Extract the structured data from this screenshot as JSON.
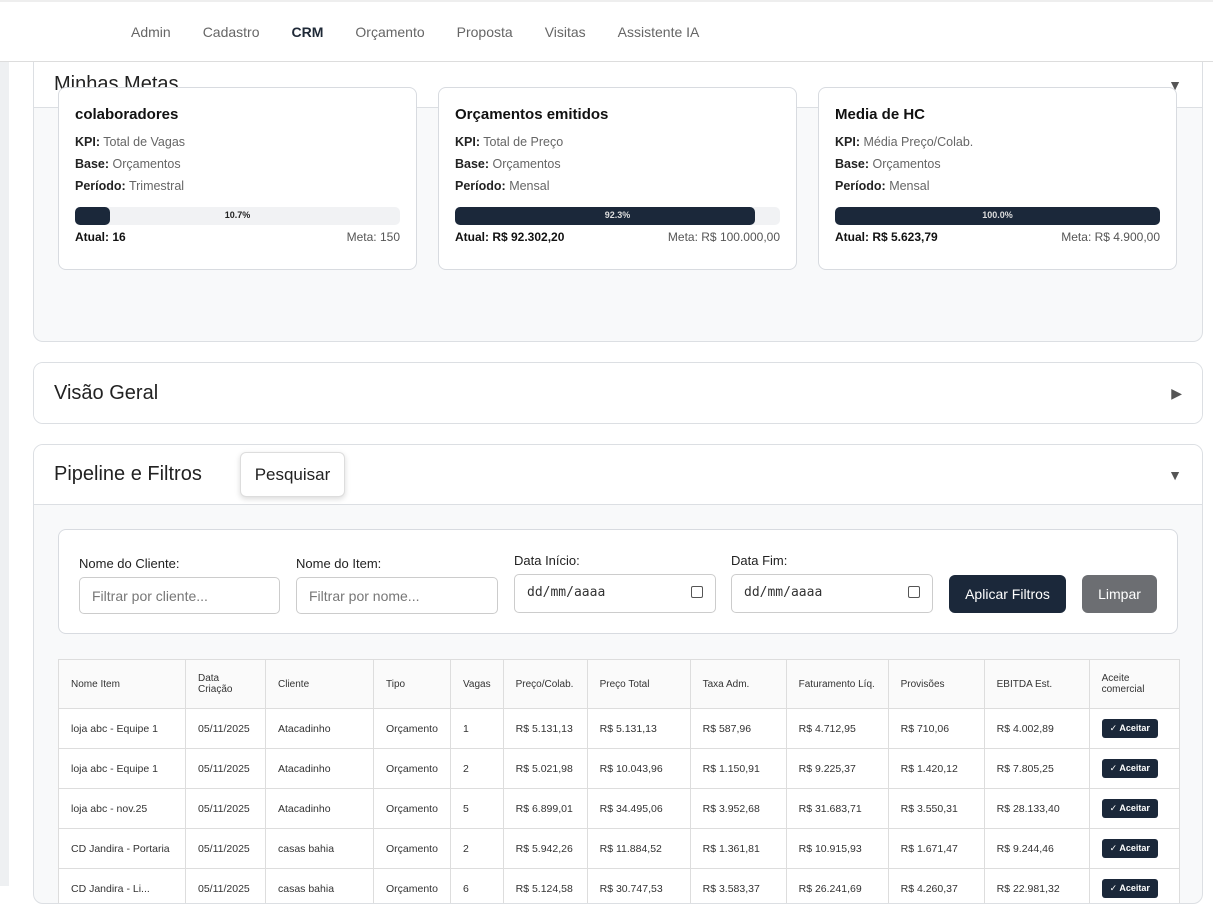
{
  "nav": {
    "items": [
      "Admin",
      "Cadastro",
      "CRM",
      "Orçamento",
      "Proposta",
      "Visitas",
      "Assistente IA"
    ],
    "active": "CRM"
  },
  "metas": {
    "title": "Minhas Metas",
    "cards": [
      {
        "title": "colaboradores",
        "kpi": "Total de Vagas",
        "base": "Orçamentos",
        "periodo": "Trimestral",
        "progress": 10.7,
        "progress_label": "10.7%",
        "atual": "Atual: 16",
        "meta": "Meta: 150"
      },
      {
        "title": "Orçamentos emitidos",
        "kpi": "Total de Preço",
        "base": "Orçamentos",
        "periodo": "Mensal",
        "progress": 92.3,
        "progress_label": "92.3%",
        "atual": "Atual: R$ 92.302,20",
        "meta": "Meta: R$ 100.000,00"
      },
      {
        "title": "Media de HC",
        "kpi": "Média Preço/Colab.",
        "base": "Orçamentos",
        "periodo": "Mensal",
        "progress": 100,
        "progress_label": "100.0%",
        "atual": "Atual: R$ 5.623,79",
        "meta": "Meta: R$ 4.900,00"
      }
    ],
    "labels": {
      "kpi": "KPI:",
      "base": "Base:",
      "periodo": "Período:"
    }
  },
  "visao": {
    "title": "Visão Geral"
  },
  "pipeline": {
    "title": "Pipeline e Filtros",
    "filters": {
      "cliente_label": "Nome do Cliente:",
      "cliente_placeholder": "Filtrar por cliente...",
      "item_label": "Nome do Item:",
      "item_placeholder": "Filtrar por nome...",
      "inicio_label": "Data Início:",
      "inicio_value": "dd/mm/aaaa",
      "fim_label": "Data Fim:",
      "fim_value": "dd/mm/aaaa",
      "apply": "Aplicar Filtros",
      "clear": "Limpar"
    },
    "table": {
      "headers": [
        "Nome Item",
        "Data Criação",
        "Cliente",
        "Tipo",
        "Vagas",
        "Preço/Colab.",
        "Preço Total",
        "Taxa Adm.",
        "Faturamento Líq.",
        "Provisões",
        "EBITDA Est.",
        "Aceite comercial"
      ],
      "action": "✓ Aceitar",
      "rows": [
        [
          "loja abc - Equipe 1",
          "05/11/2025",
          "Atacadinho",
          "Orçamento",
          "1",
          "R$ 5.131,13",
          "R$ 5.131,13",
          "R$ 587,96",
          "R$ 4.712,95",
          "R$ 710,06",
          "R$ 4.002,89"
        ],
        [
          "loja abc - Equipe 1",
          "05/11/2025",
          "Atacadinho",
          "Orçamento",
          "2",
          "R$ 5.021,98",
          "R$ 10.043,96",
          "R$ 1.150,91",
          "R$ 9.225,37",
          "R$ 1.420,12",
          "R$ 7.805,25"
        ],
        [
          "loja abc - nov.25",
          "05/11/2025",
          "Atacadinho",
          "Orçamento",
          "5",
          "R$ 6.899,01",
          "R$ 34.495,06",
          "R$ 3.952,68",
          "R$ 31.683,71",
          "R$ 3.550,31",
          "R$ 28.133,40"
        ],
        [
          "CD Jandira - Portaria",
          "05/11/2025",
          "casas bahia",
          "Orçamento",
          "2",
          "R$ 5.942,26",
          "R$ 11.884,52",
          "R$ 1.361,81",
          "R$ 10.915,93",
          "R$ 1.671,47",
          "R$ 9.244,46"
        ],
        [
          "CD Jandira - Li...",
          "05/11/2025",
          "casas bahia",
          "Orçamento",
          "6",
          "R$ 5.124,58",
          "R$ 30.747,53",
          "R$ 3.583,37",
          "R$ 26.241,69",
          "R$ 4.260,37",
          "R$ 22.981,32"
        ]
      ]
    }
  },
  "tooltip": "Pesquisar"
}
